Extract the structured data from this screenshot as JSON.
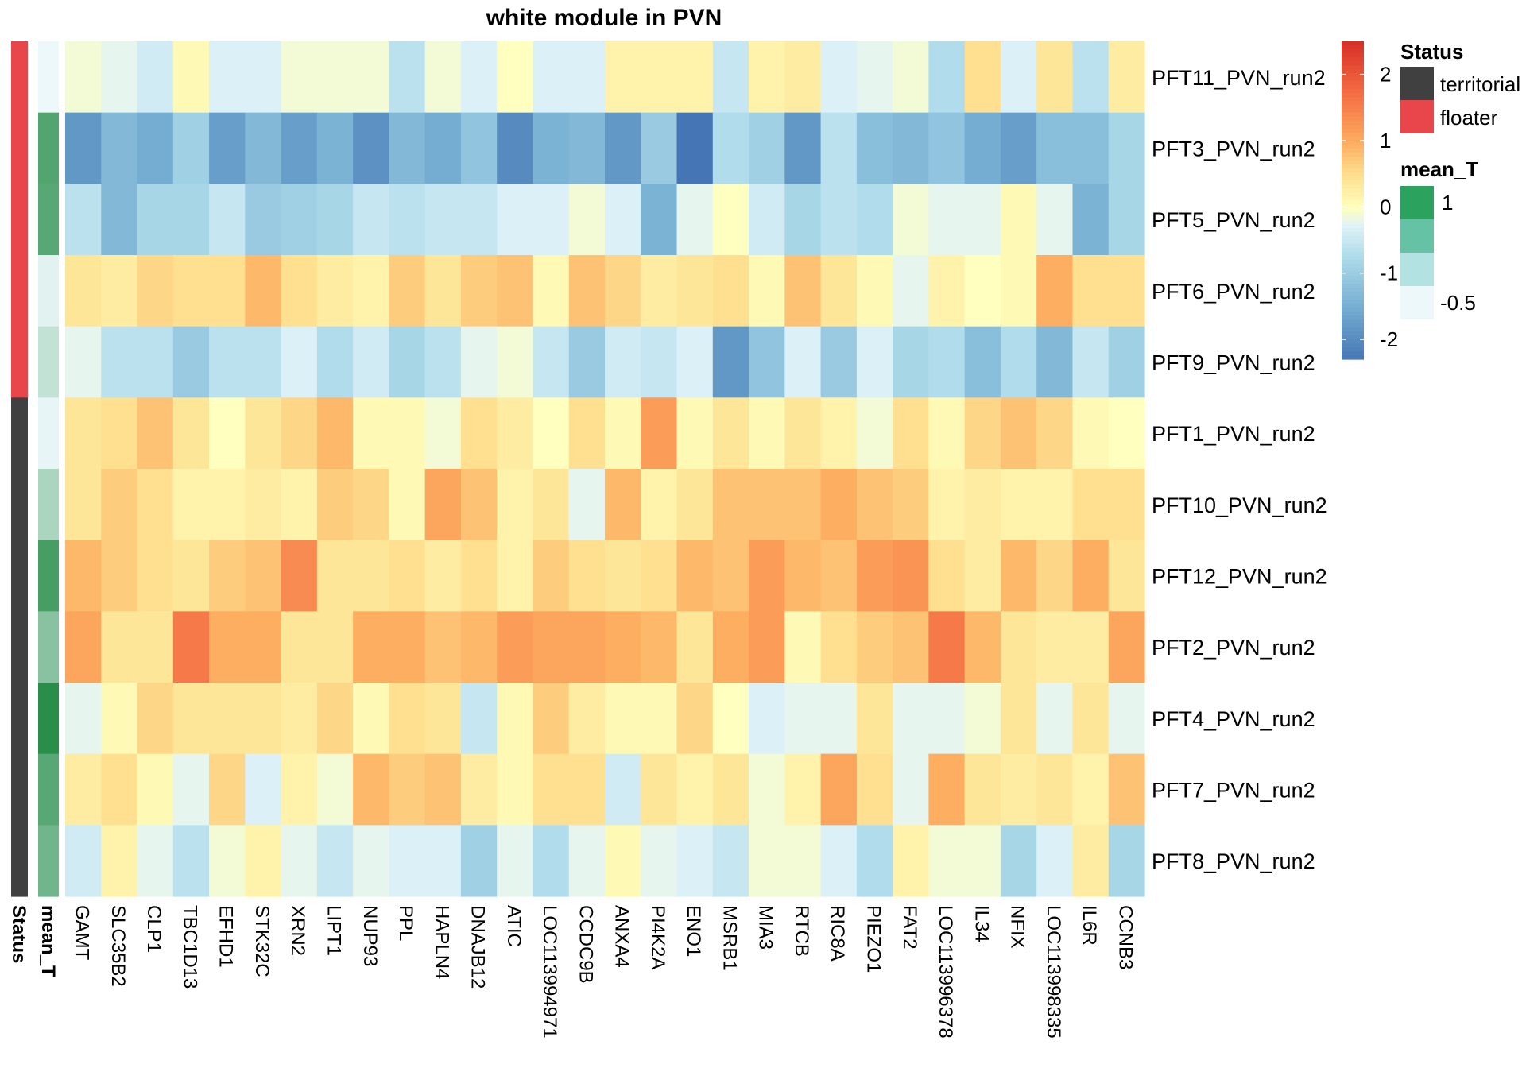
{
  "chart_data": {
    "type": "heatmap",
    "title": "white module in PVN",
    "columns": [
      "GAMT",
      "SLC35B2",
      "CLP1",
      "TBC1D13",
      "EFHD1",
      "STK32C",
      "XRN2",
      "LIPT1",
      "NUP93",
      "PPL",
      "HAPLN4",
      "DNAJB12",
      "ATIC",
      "LOC113994971",
      "CCDC9B",
      "ANXA4",
      "PI4K2A",
      "ENO1",
      "MSRB1",
      "MIA3",
      "RTCB",
      "RIC8A",
      "PIEZO1",
      "FAT2",
      "LOC113996378",
      "IL34",
      "NFIX",
      "LOC113998335",
      "IL6R",
      "CCNB3"
    ],
    "rows": [
      "PFT11_PVN_run2",
      "PFT3_PVN_run2",
      "PFT5_PVN_run2",
      "PFT6_PVN_run2",
      "PFT9_PVN_run2",
      "PFT1_PVN_run2",
      "PFT10_PVN_run2",
      "PFT12_PVN_run2",
      "PFT2_PVN_run2",
      "PFT4_PVN_run2",
      "PFT7_PVN_run2",
      "PFT8_PVN_run2"
    ],
    "values": [
      [
        -0.1,
        -0.2,
        -0.4,
        0.1,
        -0.3,
        -0.3,
        -0.1,
        -0.1,
        -0.1,
        -0.6,
        -0.1,
        -0.3,
        0.0,
        -0.3,
        -0.3,
        0.2,
        0.2,
        0.2,
        -0.5,
        0.2,
        0.3,
        -0.3,
        -0.2,
        -0.1,
        -0.7,
        0.5,
        -0.3,
        0.4,
        -0.6,
        0.3
      ],
      [
        -1.8,
        -1.3,
        -1.5,
        -0.9,
        -1.7,
        -1.3,
        -1.7,
        -1.4,
        -1.9,
        -1.3,
        -1.5,
        -1.1,
        -2.0,
        -1.4,
        -1.3,
        -1.8,
        -1.0,
        -2.3,
        -0.7,
        -0.9,
        -1.8,
        -0.6,
        -1.2,
        -1.3,
        -1.1,
        -1.5,
        -1.7,
        -1.2,
        -1.2,
        -0.8
      ],
      [
        -0.6,
        -1.3,
        -0.8,
        -0.8,
        -0.5,
        -1.0,
        -0.9,
        -0.8,
        -0.5,
        -0.6,
        -0.5,
        -0.5,
        -0.3,
        -0.3,
        -0.1,
        -0.3,
        -1.4,
        -0.2,
        0.0,
        -0.4,
        -0.8,
        -0.6,
        -0.7,
        -0.1,
        -0.2,
        -0.2,
        0.1,
        -0.2,
        -1.4,
        -0.8
      ],
      [
        0.4,
        0.3,
        0.6,
        0.5,
        0.5,
        0.9,
        0.5,
        0.3,
        0.2,
        0.7,
        0.4,
        0.7,
        0.8,
        0.1,
        0.8,
        0.6,
        0.3,
        0.4,
        0.5,
        0.1,
        0.8,
        0.4,
        0.1,
        -0.2,
        0.2,
        0.0,
        0.1,
        1.0,
        0.5,
        0.5
      ],
      [
        -0.2,
        -0.6,
        -0.6,
        -1.0,
        -0.6,
        -0.6,
        -0.3,
        -0.7,
        -0.4,
        -0.8,
        -0.6,
        -0.2,
        -0.1,
        -0.5,
        -1.0,
        -0.4,
        -0.5,
        -0.3,
        -1.8,
        -1.1,
        -0.3,
        -1.0,
        -0.3,
        -0.8,
        -0.7,
        -1.2,
        -0.7,
        -1.3,
        -0.5,
        -0.9
      ],
      [
        0.4,
        0.5,
        0.8,
        0.4,
        0.0,
        0.4,
        0.6,
        0.9,
        0.1,
        0.1,
        -0.1,
        0.5,
        0.3,
        0.0,
        0.5,
        0.1,
        1.2,
        0.1,
        0.4,
        0.1,
        0.4,
        0.2,
        -0.1,
        0.5,
        0.1,
        0.6,
        0.8,
        0.6,
        0.1,
        0.0
      ],
      [
        0.4,
        0.7,
        0.5,
        0.2,
        0.2,
        0.3,
        0.2,
        0.7,
        0.6,
        0.1,
        1.1,
        0.8,
        0.2,
        0.4,
        -0.2,
        0.9,
        0.2,
        0.4,
        0.8,
        0.8,
        0.8,
        1.0,
        0.8,
        0.7,
        0.2,
        0.3,
        0.2,
        0.2,
        0.5,
        0.5
      ],
      [
        0.9,
        0.7,
        0.5,
        0.4,
        0.7,
        0.8,
        1.4,
        0.4,
        0.4,
        0.5,
        0.3,
        0.5,
        0.2,
        0.7,
        0.5,
        0.4,
        0.5,
        0.9,
        0.8,
        1.2,
        0.9,
        0.8,
        1.2,
        1.3,
        0.5,
        0.3,
        0.9,
        0.6,
        1.0,
        0.4
      ],
      [
        1.1,
        0.4,
        0.4,
        1.6,
        1.0,
        1.0,
        0.4,
        0.4,
        1.0,
        1.0,
        0.8,
        0.9,
        1.2,
        1.1,
        1.1,
        1.0,
        0.9,
        0.4,
        1.0,
        1.2,
        0.1,
        0.5,
        0.7,
        0.8,
        1.6,
        0.9,
        0.4,
        0.3,
        0.3,
        1.1
      ],
      [
        -0.2,
        0.1,
        0.6,
        0.4,
        0.4,
        0.4,
        0.3,
        0.6,
        0.1,
        0.5,
        0.4,
        -0.5,
        0.1,
        0.7,
        0.3,
        0.1,
        0.1,
        0.6,
        0.0,
        -0.3,
        -0.2,
        -0.2,
        0.4,
        -0.2,
        -0.2,
        -0.1,
        0.4,
        -0.2,
        0.4,
        -0.2
      ],
      [
        0.3,
        0.5,
        0.1,
        -0.2,
        0.6,
        -0.3,
        0.2,
        -0.1,
        0.9,
        0.7,
        0.8,
        0.3,
        0.1,
        0.5,
        0.5,
        -0.4,
        0.4,
        0.2,
        0.4,
        -0.1,
        0.2,
        1.1,
        0.5,
        -0.2,
        1.0,
        0.4,
        0.3,
        0.4,
        0.2,
        0.8
      ],
      [
        -0.4,
        0.2,
        -0.2,
        -0.6,
        -0.1,
        0.2,
        -0.2,
        -0.5,
        -0.2,
        -0.3,
        -0.3,
        -0.9,
        -0.2,
        -0.7,
        -0.2,
        0.1,
        -0.2,
        -0.3,
        -0.5,
        -0.1,
        -0.1,
        -0.3,
        -0.7,
        0.2,
        -0.1,
        -0.1,
        -0.8,
        -0.3,
        0.3,
        -0.8
      ]
    ],
    "color_scale": {
      "min": -2.3,
      "max": 2.5,
      "stops": [
        {
          "v": -2.3,
          "c": "#4575b4"
        },
        {
          "v": -1.5,
          "c": "#74add1"
        },
        {
          "v": -0.75,
          "c": "#abd9e9"
        },
        {
          "v": -0.25,
          "c": "#e0f3f8"
        },
        {
          "v": 0.0,
          "c": "#ffffbf"
        },
        {
          "v": 0.5,
          "c": "#fee090"
        },
        {
          "v": 1.0,
          "c": "#fdae61"
        },
        {
          "v": 1.75,
          "c": "#f46d43"
        },
        {
          "v": 2.5,
          "c": "#d73027"
        }
      ],
      "ticks": [
        2,
        1,
        0,
        -1,
        -2
      ]
    },
    "annotations": {
      "status_label": "Status",
      "mean_label": "mean_T",
      "status": [
        "floater",
        "floater",
        "floater",
        "floater",
        "floater",
        "territorial",
        "territorial",
        "territorial",
        "territorial",
        "territorial",
        "territorial",
        "territorial"
      ],
      "mean_T": [
        -0.6,
        0.7,
        0.65,
        -0.5,
        -0.25,
        -0.55,
        -0.05,
        0.8,
        0.25,
        1.05,
        0.65,
        0.45
      ]
    },
    "legends": {
      "status": {
        "title": "Status",
        "items": [
          {
            "label": "territorial",
            "color": "#404040"
          },
          {
            "label": "floater",
            "color": "#e8464a"
          }
        ]
      },
      "mean_T": {
        "title": "mean_T",
        "swatches": [
          "#2ca25f",
          "#66c2a4",
          "#b2e2e2",
          "#edf8fb"
        ],
        "labels": [
          "1",
          "-0.5"
        ]
      }
    },
    "xlabel": "",
    "ylabel": ""
  }
}
